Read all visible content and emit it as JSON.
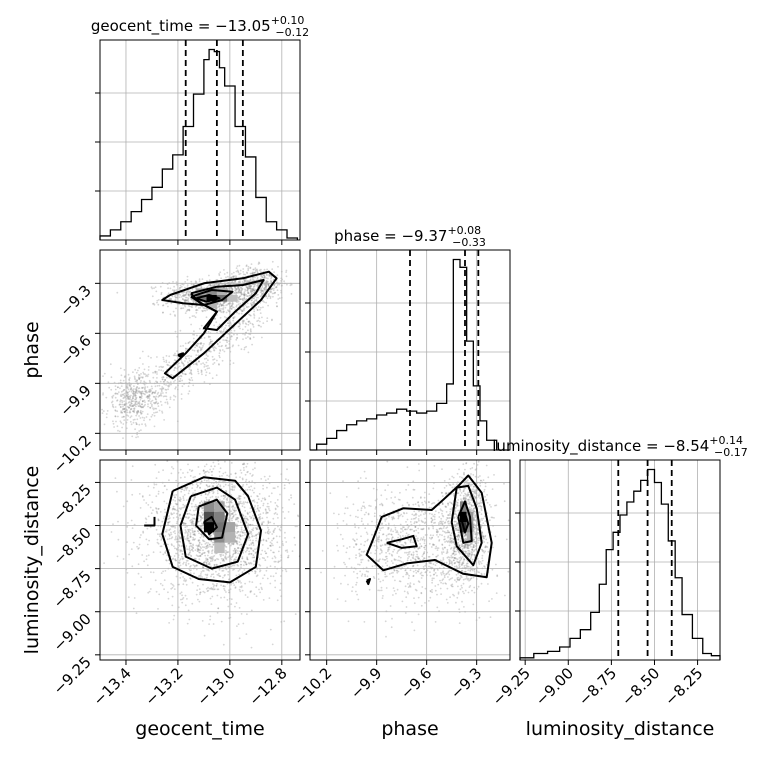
{
  "chart_data": {
    "type": "corner",
    "parameters": [
      {
        "name": "geocent_time",
        "median": -13.05,
        "plus": 0.1,
        "minus": 0.12,
        "title_prefix": "geocent_time = ",
        "title_value": "−13.05",
        "title_sup": "+0.10",
        "title_sub": "−0.12",
        "range": [
          -13.5,
          -12.73
        ],
        "ticks": [
          -13.4,
          -13.2,
          -13.0,
          -12.8
        ],
        "tick_labels": [
          "−13.4",
          "−13.2",
          "−13.0",
          "−12.8"
        ],
        "quantiles": [
          -13.17,
          -13.05,
          -12.95
        ],
        "hist_edges": [
          -13.5,
          -13.46,
          -13.42,
          -13.38,
          -13.34,
          -13.3,
          -13.26,
          -13.22,
          -13.18,
          -13.14,
          -13.1,
          -13.08,
          -13.06,
          -13.04,
          -13.02,
          -12.98,
          -12.94,
          -12.9,
          -12.86,
          -12.82,
          -12.78,
          -12.74
        ],
        "hist_counts": [
          2,
          5,
          9,
          14,
          20,
          26,
          35,
          42,
          56,
          72,
          89,
          94,
          93,
          85,
          76,
          56,
          41,
          21,
          9,
          5,
          1
        ]
      },
      {
        "name": "phase",
        "median": -9.37,
        "plus": 0.08,
        "minus": 0.33,
        "title_prefix": "phase = ",
        "title_value": "−9.37",
        "title_sup": "+0.08",
        "title_sub": "−0.33",
        "range": [
          -10.3,
          -9.1
        ],
        "ticks": [
          -10.2,
          -9.9,
          -9.6,
          -9.3
        ],
        "tick_labels": [
          "−10.2",
          "−9.9",
          "−9.6",
          "−9.3"
        ],
        "quantiles": [
          -9.7,
          -9.37,
          -9.29
        ],
        "hist_edges": [
          -10.3,
          -10.26,
          -10.2,
          -10.14,
          -10.08,
          -10.02,
          -9.96,
          -9.9,
          -9.84,
          -9.78,
          -9.72,
          -9.66,
          -9.6,
          -9.54,
          -9.48,
          -9.44,
          -9.4,
          -9.36,
          -9.32,
          -9.28,
          -9.24,
          -9.18,
          -9.1
        ],
        "hist_counts": [
          0,
          3,
          6,
          10,
          13,
          15,
          16,
          18,
          19,
          21,
          20,
          19,
          20,
          24,
          34,
          98,
          94,
          56,
          33,
          15,
          5,
          0
        ]
      },
      {
        "name": "luminosity_distance",
        "median": -8.54,
        "plus": 0.14,
        "minus": 0.17,
        "title_prefix": "luminosity_distance = ",
        "title_value": "−8.54",
        "title_sup": "+0.14",
        "title_sub": "−0.17",
        "range": [
          -9.28,
          -8.12
        ],
        "ticks": [
          -9.25,
          -9.0,
          -8.75,
          -8.5,
          -8.25
        ],
        "tick_labels": [
          "−9.25",
          "−9.00",
          "−8.75",
          "−8.50",
          "−8.25"
        ],
        "quantiles": [
          -8.71,
          -8.54,
          -8.4
        ],
        "hist_edges": [
          -9.28,
          -9.2,
          -9.12,
          -9.05,
          -8.99,
          -8.93,
          -8.87,
          -8.82,
          -8.78,
          -8.74,
          -8.7,
          -8.66,
          -8.62,
          -8.58,
          -8.54,
          -8.5,
          -8.46,
          -8.42,
          -8.38,
          -8.34,
          -8.28,
          -8.22,
          -8.17,
          -8.12
        ],
        "hist_counts": [
          1,
          3,
          4,
          6,
          10,
          14,
          22,
          35,
          51,
          59,
          67,
          73,
          78,
          83,
          88,
          82,
          72,
          55,
          38,
          21,
          10,
          3,
          2
        ]
      }
    ],
    "axis_labels": {
      "x": [
        "geocent_time",
        "phase",
        "luminosity_distance"
      ],
      "y": [
        "phase",
        "luminosity_distance"
      ]
    },
    "grid": true,
    "colors": {
      "line": "#000000",
      "points": "#8a8a8a",
      "grid": "#b0b0b0"
    },
    "density_cells": {
      "phase_vs_geocent_time": [
        {
          "x0": -13.13,
          "x1": -13.09,
          "y0": -9.37,
          "y1": -9.33,
          "level": 0.35
        },
        {
          "x0": -13.09,
          "x1": -13.05,
          "y0": -9.37,
          "y1": -9.33,
          "level": 0.45
        },
        {
          "x0": -13.05,
          "x1": -13.01,
          "y0": -9.37,
          "y1": -9.33,
          "level": 0.3
        },
        {
          "x0": -13.13,
          "x1": -13.09,
          "y0": -9.41,
          "y1": -9.37,
          "level": 0.55
        },
        {
          "x0": -13.09,
          "x1": -13.05,
          "y0": -9.41,
          "y1": -9.37,
          "level": 1.0
        },
        {
          "x0": -13.05,
          "x1": -13.01,
          "y0": -9.41,
          "y1": -9.37,
          "level": 0.55
        },
        {
          "x0": -13.01,
          "x1": -12.97,
          "y0": -9.41,
          "y1": -9.37,
          "level": 0.25
        },
        {
          "x0": -13.09,
          "x1": -13.05,
          "y0": -9.45,
          "y1": -9.41,
          "level": 0.3
        }
      ],
      "luminosity_distance_vs_geocent_time": [
        {
          "x0": -13.1,
          "x1": -13.06,
          "y0": -8.42,
          "y1": -8.36,
          "level": 0.45
        },
        {
          "x0": -13.06,
          "x1": -13.02,
          "y0": -8.42,
          "y1": -8.36,
          "level": 0.35
        },
        {
          "x0": -13.1,
          "x1": -13.06,
          "y0": -8.48,
          "y1": -8.42,
          "level": 0.7
        },
        {
          "x0": -13.06,
          "x1": -13.02,
          "y0": -8.48,
          "y1": -8.42,
          "level": 0.5
        },
        {
          "x0": -13.1,
          "x1": -13.06,
          "y0": -8.54,
          "y1": -8.48,
          "level": 1.0
        },
        {
          "x0": -13.06,
          "x1": -13.02,
          "y0": -8.54,
          "y1": -8.48,
          "level": 0.55
        },
        {
          "x0": -13.02,
          "x1": -12.98,
          "y0": -8.54,
          "y1": -8.48,
          "level": 0.35
        },
        {
          "x0": -13.06,
          "x1": -13.02,
          "y0": -8.6,
          "y1": -8.54,
          "level": 0.45
        },
        {
          "x0": -13.02,
          "x1": -12.98,
          "y0": -8.6,
          "y1": -8.54,
          "level": 0.3
        },
        {
          "x0": -13.06,
          "x1": -13.02,
          "y0": -8.66,
          "y1": -8.6,
          "level": 0.25
        }
      ],
      "luminosity_distance_vs_phase": [
        {
          "x0": -9.4,
          "x1": -9.36,
          "y0": -8.42,
          "y1": -8.36,
          "level": 0.5
        },
        {
          "x0": -9.4,
          "x1": -9.36,
          "y0": -8.48,
          "y1": -8.42,
          "level": 1.0
        },
        {
          "x0": -9.36,
          "x1": -9.32,
          "y0": -8.48,
          "y1": -8.42,
          "level": 0.4
        },
        {
          "x0": -9.4,
          "x1": -9.36,
          "y0": -8.54,
          "y1": -8.48,
          "level": 0.8
        },
        {
          "x0": -9.36,
          "x1": -9.32,
          "y0": -8.54,
          "y1": -8.48,
          "level": 0.45
        },
        {
          "x0": -9.36,
          "x1": -9.32,
          "y0": -8.6,
          "y1": -8.54,
          "level": 0.3
        }
      ]
    },
    "contours": {
      "phase_vs_geocent_time": [
        [
          [
            -13.23,
            -9.37
          ],
          [
            -13.1,
            -9.3
          ],
          [
            -12.95,
            -9.27
          ],
          [
            -12.85,
            -9.23
          ],
          [
            -12.82,
            -9.27
          ],
          [
            -12.88,
            -9.4
          ],
          [
            -12.97,
            -9.53
          ],
          [
            -13.1,
            -9.72
          ],
          [
            -13.22,
            -9.87
          ],
          [
            -13.25,
            -9.84
          ],
          [
            -13.17,
            -9.72
          ],
          [
            -13.1,
            -9.6
          ],
          [
            -13.05,
            -9.47
          ],
          [
            -13.1,
            -9.43
          ],
          [
            -13.18,
            -9.42
          ],
          [
            -13.26,
            -9.4
          ],
          [
            -13.23,
            -9.37
          ]
        ],
        [
          [
            -13.15,
            -9.36
          ],
          [
            -13.05,
            -9.32
          ],
          [
            -12.95,
            -9.31
          ],
          [
            -12.87,
            -9.28
          ],
          [
            -12.9,
            -9.36
          ],
          [
            -12.98,
            -9.47
          ],
          [
            -13.05,
            -9.58
          ],
          [
            -13.1,
            -9.57
          ],
          [
            -13.05,
            -9.47
          ],
          [
            -13.12,
            -9.41
          ],
          [
            -13.15,
            -9.36
          ]
        ],
        [
          [
            -13.15,
            -9.38
          ],
          [
            -13.07,
            -9.34
          ],
          [
            -12.99,
            -9.35
          ],
          [
            -13.03,
            -9.4
          ],
          [
            -13.1,
            -9.43
          ],
          [
            -13.15,
            -9.38
          ]
        ],
        [
          [
            -13.13,
            -9.39
          ],
          [
            -13.08,
            -9.37
          ],
          [
            -13.04,
            -9.39
          ],
          [
            -13.09,
            -9.41
          ],
          [
            -13.13,
            -9.39
          ]
        ],
        [
          [
            -13.2,
            -9.73
          ],
          [
            -13.18,
            -9.72
          ],
          [
            -13.19,
            -9.74
          ],
          [
            -13.2,
            -9.73
          ]
        ]
      ],
      "luminosity_distance_vs_geocent_time": [
        [
          [
            -13.22,
            -8.3
          ],
          [
            -13.1,
            -8.22
          ],
          [
            -12.98,
            -8.24
          ],
          [
            -12.93,
            -8.33
          ],
          [
            -12.88,
            -8.53
          ],
          [
            -12.9,
            -8.74
          ],
          [
            -13.0,
            -8.83
          ],
          [
            -13.12,
            -8.81
          ],
          [
            -13.22,
            -8.74
          ],
          [
            -13.26,
            -8.55
          ],
          [
            -13.22,
            -8.3
          ]
        ],
        [
          [
            -13.15,
            -8.33
          ],
          [
            -13.05,
            -8.28
          ],
          [
            -12.98,
            -8.35
          ],
          [
            -12.93,
            -8.55
          ],
          [
            -12.97,
            -8.71
          ],
          [
            -13.07,
            -8.75
          ],
          [
            -13.17,
            -8.68
          ],
          [
            -13.19,
            -8.5
          ],
          [
            -13.15,
            -8.33
          ]
        ],
        [
          [
            -13.12,
            -8.39
          ],
          [
            -13.05,
            -8.35
          ],
          [
            -13.01,
            -8.43
          ],
          [
            -13.03,
            -8.57
          ],
          [
            -13.08,
            -8.58
          ],
          [
            -13.13,
            -8.5
          ],
          [
            -13.12,
            -8.39
          ]
        ],
        [
          [
            -13.1,
            -8.48
          ],
          [
            -13.07,
            -8.45
          ],
          [
            -13.05,
            -8.51
          ],
          [
            -13.08,
            -8.55
          ],
          [
            -13.1,
            -8.48
          ]
        ],
        [
          [
            -13.33,
            -8.5
          ],
          [
            -13.29,
            -8.5
          ],
          [
            -13.29,
            -8.45
          ]
        ]
      ],
      "luminosity_distance_vs_phase": [
        [
          [
            -9.93,
            -8.6
          ],
          [
            -9.96,
            -8.67
          ],
          [
            -9.86,
            -8.76
          ],
          [
            -9.72,
            -8.72
          ],
          [
            -9.55,
            -8.7
          ],
          [
            -9.38,
            -8.78
          ],
          [
            -9.24,
            -8.8
          ],
          [
            -9.21,
            -8.6
          ],
          [
            -9.27,
            -8.31
          ],
          [
            -9.35,
            -8.21
          ],
          [
            -9.41,
            -8.27
          ],
          [
            -9.5,
            -8.35
          ],
          [
            -9.57,
            -8.41
          ],
          [
            -9.74,
            -8.4
          ],
          [
            -9.87,
            -8.45
          ],
          [
            -9.93,
            -8.6
          ]
        ],
        [
          [
            -9.45,
            -8.48
          ],
          [
            -9.42,
            -8.28
          ],
          [
            -9.35,
            -8.27
          ],
          [
            -9.3,
            -8.4
          ],
          [
            -9.27,
            -8.6
          ],
          [
            -9.32,
            -8.73
          ],
          [
            -9.42,
            -8.62
          ],
          [
            -9.45,
            -8.48
          ]
        ],
        [
          [
            -9.41,
            -8.45
          ],
          [
            -9.37,
            -8.36
          ],
          [
            -9.34,
            -8.45
          ],
          [
            -9.33,
            -8.59
          ],
          [
            -9.38,
            -8.6
          ],
          [
            -9.41,
            -8.45
          ]
        ],
        [
          [
            -9.39,
            -8.47
          ],
          [
            -9.37,
            -8.43
          ],
          [
            -9.35,
            -8.49
          ],
          [
            -9.37,
            -8.54
          ],
          [
            -9.39,
            -8.47
          ]
        ],
        [
          [
            -9.84,
            -8.6
          ],
          [
            -9.75,
            -8.58
          ],
          [
            -9.68,
            -8.56
          ],
          [
            -9.66,
            -8.62
          ],
          [
            -9.75,
            -8.63
          ],
          [
            -9.84,
            -8.6
          ]
        ],
        [
          [
            -9.96,
            -8.82
          ],
          [
            -9.94,
            -8.81
          ],
          [
            -9.95,
            -8.84
          ],
          [
            -9.96,
            -8.82
          ]
        ]
      ]
    }
  }
}
